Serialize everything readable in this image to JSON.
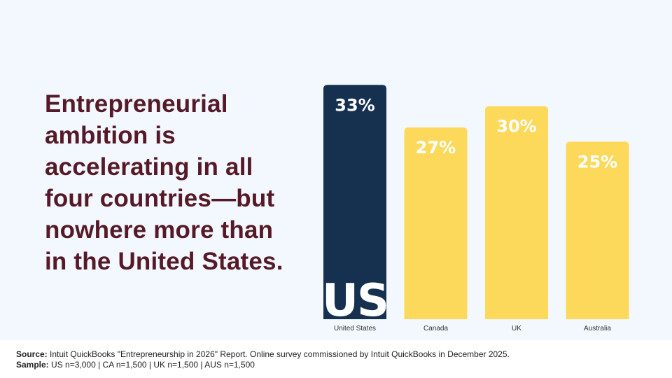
{
  "headline": {
    "lines": [
      "Entrepreneurial",
      "ambition is",
      "accelerating in all",
      "four countries—but",
      "nowhere more than",
      "in the United States."
    ]
  },
  "colors": {
    "background": "#f2f8fd",
    "headline": "#561928",
    "highlight_bar": "#163150",
    "bar": "#fcd95b",
    "bar_label": "#ffffff",
    "axis_label": "#333333"
  },
  "chart_data": {
    "type": "bar",
    "categories": [
      "United States",
      "Canada",
      "UK",
      "Australia"
    ],
    "values": [
      33,
      27,
      30,
      25
    ],
    "value_labels": [
      "33%",
      "27%",
      "30%",
      "25%"
    ],
    "unit": "%",
    "ylim": [
      0,
      42
    ],
    "highlight_index": 0,
    "highlight_badge": "US",
    "grid": false,
    "legend": "none"
  },
  "footer": {
    "source_label": "Source:",
    "source_text": " Intuit QuickBooks \"Entrepreneurship in 2026\" Report. Online survey commissioned by Intuit QuickBooks in December 2025.",
    "sample_label": "Sample:",
    "sample_text": " US n=3,000 | CA n=1,500 | UK n=1,500 | AUS n=1,500"
  }
}
